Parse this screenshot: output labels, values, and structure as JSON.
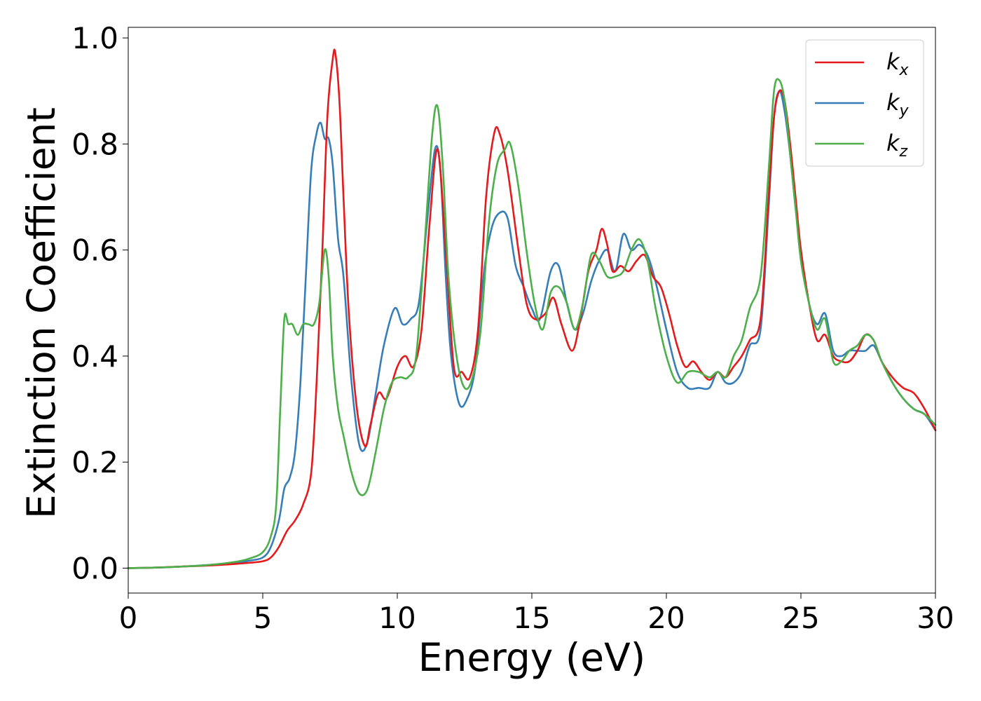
{
  "chart_data": {
    "type": "line",
    "xlabel": "Energy (eV)",
    "ylabel": "Extinction Coefficient",
    "xlim": [
      0,
      30
    ],
    "ylim": [
      -0.047,
      1.02
    ],
    "xticks": [
      0,
      5,
      10,
      15,
      20,
      25,
      30
    ],
    "xtick_labels": [
      "0",
      "5",
      "10",
      "15",
      "20",
      "25",
      "30"
    ],
    "yticks": [
      0.0,
      0.2,
      0.4,
      0.6,
      0.8,
      1.0
    ],
    "ytick_labels": [
      "0.0",
      "0.2",
      "0.4",
      "0.6",
      "0.8",
      "1.0"
    ],
    "grid": false,
    "legend_position": "top-right",
    "series": [
      {
        "name": "k",
        "subscript": "x",
        "color": "#e41a1c",
        "x": [
          0,
          1,
          2,
          3,
          4,
          4.5,
          5,
          5.3,
          5.6,
          5.9,
          6.2,
          6.5,
          6.8,
          7.0,
          7.2,
          7.4,
          7.6,
          7.7,
          7.85,
          8.0,
          8.2,
          8.5,
          8.8,
          9.0,
          9.3,
          9.6,
          10.0,
          10.3,
          10.6,
          10.9,
          11.2,
          11.5,
          11.8,
          12.1,
          12.4,
          12.7,
          13.0,
          13.3,
          13.6,
          13.8,
          14.1,
          14.5,
          14.8,
          15.1,
          15.5,
          15.8,
          16.1,
          16.5,
          16.8,
          17.1,
          17.4,
          17.6,
          17.8,
          18.0,
          18.3,
          18.6,
          18.9,
          19.2,
          19.5,
          19.8,
          20.1,
          20.4,
          20.7,
          21.0,
          21.3,
          21.6,
          21.9,
          22.2,
          22.5,
          22.8,
          23.1,
          23.5,
          23.8,
          24.0,
          24.2,
          24.4,
          24.6,
          24.8,
          25.0,
          25.3,
          25.6,
          25.9,
          26.2,
          26.5,
          26.8,
          27.1,
          27.4,
          27.7,
          28.0,
          28.4,
          28.8,
          29.2,
          29.6,
          30.0
        ],
        "y": [
          0.0,
          0.001,
          0.003,
          0.005,
          0.008,
          0.01,
          0.013,
          0.02,
          0.04,
          0.07,
          0.09,
          0.12,
          0.18,
          0.35,
          0.58,
          0.85,
          0.96,
          0.97,
          0.88,
          0.7,
          0.48,
          0.3,
          0.23,
          0.27,
          0.33,
          0.32,
          0.38,
          0.4,
          0.38,
          0.45,
          0.65,
          0.79,
          0.6,
          0.38,
          0.37,
          0.36,
          0.45,
          0.7,
          0.82,
          0.82,
          0.75,
          0.6,
          0.5,
          0.47,
          0.48,
          0.51,
          0.46,
          0.41,
          0.47,
          0.56,
          0.6,
          0.64,
          0.61,
          0.56,
          0.57,
          0.56,
          0.58,
          0.59,
          0.55,
          0.53,
          0.48,
          0.42,
          0.38,
          0.39,
          0.37,
          0.355,
          0.37,
          0.36,
          0.38,
          0.4,
          0.43,
          0.47,
          0.7,
          0.85,
          0.9,
          0.88,
          0.8,
          0.7,
          0.6,
          0.5,
          0.43,
          0.44,
          0.4,
          0.39,
          0.39,
          0.41,
          0.44,
          0.43,
          0.39,
          0.36,
          0.34,
          0.33,
          0.3,
          0.26
        ]
      },
      {
        "name": "k",
        "subscript": "y",
        "color": "#377eb8",
        "x": [
          0,
          1,
          2,
          3,
          4,
          4.5,
          5,
          5.3,
          5.6,
          5.8,
          6.0,
          6.2,
          6.4,
          6.6,
          6.8,
          7.0,
          7.15,
          7.3,
          7.45,
          7.6,
          7.8,
          8.0,
          8.3,
          8.6,
          8.9,
          9.2,
          9.5,
          9.9,
          10.2,
          10.5,
          10.8,
          11.1,
          11.4,
          11.6,
          11.8,
          12.0,
          12.3,
          12.6,
          12.9,
          13.2,
          13.5,
          13.8,
          14.1,
          14.4,
          14.7,
          15.0,
          15.3,
          15.7,
          16.0,
          16.3,
          16.6,
          16.9,
          17.2,
          17.5,
          17.8,
          18.1,
          18.4,
          18.7,
          19.0,
          19.3,
          19.6,
          20.0,
          20.4,
          20.8,
          21.2,
          21.6,
          21.9,
          22.2,
          22.5,
          22.8,
          23.1,
          23.5,
          23.8,
          24.0,
          24.2,
          24.4,
          24.6,
          24.8,
          25.0,
          25.3,
          25.6,
          25.9,
          26.2,
          26.5,
          26.8,
          27.1,
          27.4,
          27.7,
          28.0,
          28.4,
          28.8,
          29.2,
          29.6,
          30.0
        ],
        "y": [
          0.0,
          0.001,
          0.003,
          0.006,
          0.01,
          0.014,
          0.02,
          0.04,
          0.09,
          0.15,
          0.17,
          0.22,
          0.35,
          0.55,
          0.75,
          0.82,
          0.84,
          0.81,
          0.81,
          0.76,
          0.62,
          0.55,
          0.35,
          0.23,
          0.24,
          0.33,
          0.42,
          0.49,
          0.46,
          0.47,
          0.5,
          0.65,
          0.79,
          0.75,
          0.55,
          0.4,
          0.31,
          0.32,
          0.38,
          0.55,
          0.64,
          0.67,
          0.66,
          0.57,
          0.53,
          0.49,
          0.47,
          0.56,
          0.57,
          0.5,
          0.45,
          0.48,
          0.54,
          0.58,
          0.6,
          0.56,
          0.63,
          0.6,
          0.61,
          0.59,
          0.54,
          0.45,
          0.37,
          0.34,
          0.34,
          0.34,
          0.37,
          0.35,
          0.35,
          0.37,
          0.42,
          0.45,
          0.68,
          0.85,
          0.9,
          0.86,
          0.78,
          0.68,
          0.6,
          0.5,
          0.46,
          0.48,
          0.41,
          0.4,
          0.41,
          0.41,
          0.41,
          0.42,
          0.39,
          0.35,
          0.32,
          0.3,
          0.29,
          0.26
        ]
      },
      {
        "name": "k",
        "subscript": "z",
        "color": "#4daf4a",
        "x": [
          0,
          1,
          2,
          3,
          4,
          4.5,
          5,
          5.3,
          5.5,
          5.65,
          5.8,
          5.95,
          6.1,
          6.3,
          6.5,
          6.7,
          6.9,
          7.1,
          7.3,
          7.45,
          7.6,
          7.8,
          8.0,
          8.3,
          8.6,
          8.9,
          9.2,
          9.5,
          9.8,
          10.1,
          10.4,
          10.7,
          11.0,
          11.3,
          11.5,
          11.7,
          11.9,
          12.2,
          12.5,
          12.8,
          13.1,
          13.4,
          13.7,
          14.0,
          14.2,
          14.5,
          14.8,
          15.1,
          15.4,
          15.7,
          16.0,
          16.3,
          16.6,
          16.9,
          17.2,
          17.5,
          17.8,
          18.1,
          18.4,
          18.7,
          19.0,
          19.3,
          19.6,
          20.0,
          20.4,
          20.8,
          21.2,
          21.6,
          21.9,
          22.2,
          22.5,
          22.8,
          23.1,
          23.5,
          23.8,
          24.0,
          24.2,
          24.4,
          24.6,
          24.8,
          25.0,
          25.3,
          25.6,
          25.9,
          26.2,
          26.5,
          26.8,
          27.1,
          27.4,
          27.7,
          28.0,
          28.4,
          28.8,
          29.2,
          29.6,
          30.0
        ],
        "y": [
          0.0,
          0.001,
          0.003,
          0.006,
          0.012,
          0.018,
          0.03,
          0.06,
          0.12,
          0.3,
          0.47,
          0.46,
          0.46,
          0.44,
          0.46,
          0.46,
          0.46,
          0.5,
          0.6,
          0.55,
          0.4,
          0.3,
          0.25,
          0.18,
          0.14,
          0.15,
          0.22,
          0.3,
          0.35,
          0.36,
          0.36,
          0.4,
          0.6,
          0.82,
          0.87,
          0.75,
          0.55,
          0.4,
          0.34,
          0.36,
          0.45,
          0.65,
          0.76,
          0.79,
          0.8,
          0.72,
          0.6,
          0.5,
          0.45,
          0.52,
          0.53,
          0.5,
          0.45,
          0.5,
          0.59,
          0.58,
          0.55,
          0.55,
          0.56,
          0.6,
          0.62,
          0.58,
          0.49,
          0.4,
          0.35,
          0.37,
          0.37,
          0.36,
          0.37,
          0.36,
          0.4,
          0.43,
          0.49,
          0.55,
          0.75,
          0.9,
          0.92,
          0.88,
          0.78,
          0.68,
          0.58,
          0.5,
          0.45,
          0.47,
          0.39,
          0.39,
          0.41,
          0.42,
          0.44,
          0.43,
          0.39,
          0.35,
          0.32,
          0.3,
          0.29,
          0.27
        ]
      }
    ]
  }
}
